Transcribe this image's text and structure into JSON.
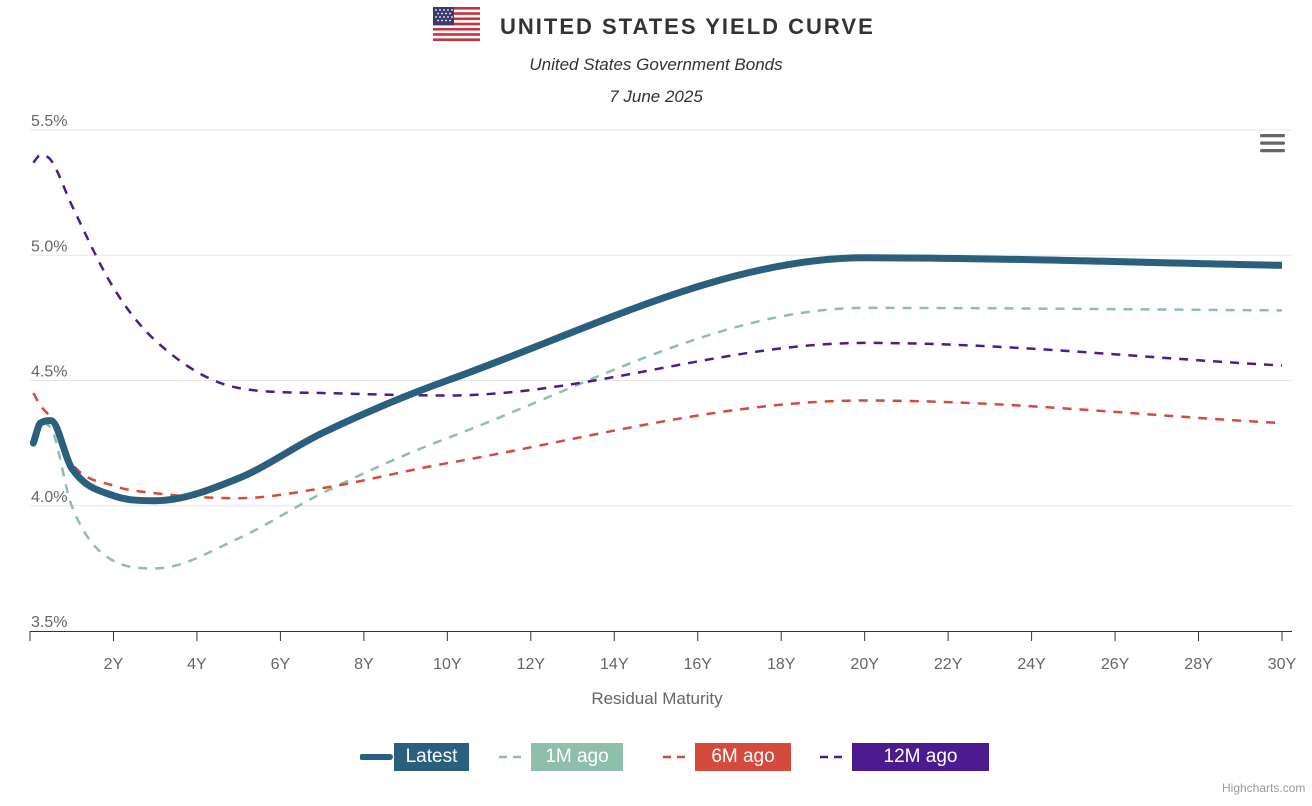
{
  "header": {
    "title": "UNITED STATES YIELD CURVE",
    "subtitle": "United States Government Bonds",
    "date": "7 June 2025",
    "flag_icon": "us-flag-icon"
  },
  "menu": {
    "icon": "hamburger-menu-icon"
  },
  "credits": "Highcharts.com",
  "chart_data": {
    "type": "line",
    "title": "UNITED STATES YIELD CURVE",
    "subtitle": "United States Government Bonds",
    "date": "7 June 2025",
    "xlabel": "Residual Maturity",
    "ylabel": "",
    "x_ticks": [
      "2Y",
      "4Y",
      "6Y",
      "8Y",
      "10Y",
      "12Y",
      "14Y",
      "16Y",
      "18Y",
      "20Y",
      "22Y",
      "24Y",
      "26Y",
      "28Y",
      "30Y"
    ],
    "x_tick_values": [
      2,
      4,
      6,
      8,
      10,
      12,
      14,
      16,
      18,
      20,
      22,
      24,
      26,
      28,
      30
    ],
    "y_ticks": [
      "3.5%",
      "4.0%",
      "4.5%",
      "5.0%",
      "5.5%"
    ],
    "y_tick_values": [
      3.5,
      4.0,
      4.5,
      5.0,
      5.5
    ],
    "xlim": [
      0,
      30
    ],
    "ylim": [
      3.5,
      5.5
    ],
    "grid": true,
    "legend_position": "bottom-center",
    "series": [
      {
        "name": "Latest",
        "color": "#2b5f7e",
        "dash": "solid",
        "points": [
          [
            0.08,
            4.25
          ],
          [
            0.25,
            4.33
          ],
          [
            0.5,
            4.34
          ],
          [
            1,
            4.15
          ],
          [
            2,
            4.04
          ],
          [
            3,
            4.02
          ],
          [
            5,
            4.11
          ],
          [
            7,
            4.29
          ],
          [
            10,
            4.5
          ],
          [
            20,
            4.99
          ],
          [
            30,
            4.96
          ]
        ]
      },
      {
        "name": "1M ago",
        "color": "#8fbfaa",
        "dash": "dash",
        "points": [
          [
            0.08,
            4.28
          ],
          [
            0.25,
            4.33
          ],
          [
            0.5,
            4.31
          ],
          [
            1,
            4.0
          ],
          [
            2,
            3.78
          ],
          [
            3,
            3.75
          ],
          [
            5,
            3.87
          ],
          [
            7,
            4.05
          ],
          [
            10,
            4.27
          ],
          [
            20,
            4.79
          ],
          [
            30,
            4.78
          ]
        ]
      },
      {
        "name": "6M ago",
        "color": "#d44a3c",
        "dash": "dash",
        "points": [
          [
            0.08,
            4.45
          ],
          [
            0.25,
            4.4
          ],
          [
            0.5,
            4.35
          ],
          [
            1,
            4.17
          ],
          [
            2,
            4.08
          ],
          [
            3,
            4.05
          ],
          [
            5,
            4.03
          ],
          [
            7,
            4.07
          ],
          [
            10,
            4.17
          ],
          [
            20,
            4.42
          ],
          [
            30,
            4.33
          ]
        ]
      },
      {
        "name": "12M ago",
        "color": "#4b1b8f",
        "dash": "dash",
        "points": [
          [
            0.08,
            5.37
          ],
          [
            0.25,
            5.4
          ],
          [
            0.5,
            5.38
          ],
          [
            1,
            5.2
          ],
          [
            2,
            4.87
          ],
          [
            3,
            4.66
          ],
          [
            5,
            4.47
          ],
          [
            7,
            4.45
          ],
          [
            10,
            4.44
          ],
          [
            20,
            4.65
          ],
          [
            30,
            4.56
          ]
        ]
      }
    ]
  },
  "legend": {
    "items": [
      {
        "label": "Latest",
        "color": "#2b5f7e",
        "dash": "solid"
      },
      {
        "label": "1M ago",
        "color": "#8fbfaa",
        "dash": "dash"
      },
      {
        "label": "6M ago",
        "color": "#d44a3c",
        "dash": "dash"
      },
      {
        "label": "12M ago",
        "color": "#4b1b8f",
        "dash": "dash"
      }
    ]
  }
}
